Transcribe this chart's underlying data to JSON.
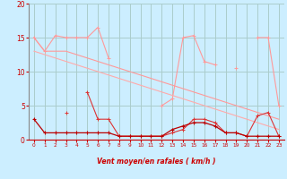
{
  "bg_color": "#cceeff",
  "grid_color": "#aacccc",
  "xlabel": "Vent moyen/en rafales ( km/h )",
  "xlabel_color": "#cc0000",
  "tick_color": "#cc0000",
  "xlim": [
    -0.5,
    23.5
  ],
  "ylim": [
    0,
    20
  ],
  "yticks": [
    0,
    5,
    10,
    15,
    20
  ],
  "xticks": [
    0,
    1,
    2,
    3,
    4,
    5,
    6,
    7,
    8,
    9,
    10,
    11,
    12,
    13,
    14,
    15,
    16,
    17,
    18,
    19,
    20,
    21,
    22,
    23
  ],
  "line_color_dark": "#bb0000",
  "line_color_mid": "#dd3333",
  "line_color_light1": "#ff9999",
  "line_color_light2": "#ffaaaa",
  "series": {
    "s1_light_peaks": [
      15.0,
      13.0,
      15.3,
      15.0,
      15.0,
      15.0,
      16.5,
      12.0,
      null,
      null,
      null,
      null,
      5.0,
      6.0,
      15.0,
      15.3,
      11.5,
      11.0,
      null,
      10.5,
      null,
      15.0,
      15.0,
      5.0
    ],
    "s2_light_trend": [
      15.0,
      13.0,
      13.0,
      13.0,
      12.5,
      12.0,
      11.5,
      11.0,
      10.5,
      10.0,
      9.5,
      9.0,
      8.5,
      8.0,
      7.5,
      7.0,
      6.5,
      6.0,
      5.5,
      5.0,
      4.5,
      4.0,
      3.5,
      3.0
    ],
    "s3_mid_line": [
      13.0,
      12.5,
      12.0,
      11.5,
      11.0,
      10.5,
      10.0,
      9.5,
      9.0,
      8.5,
      8.0,
      7.5,
      7.0,
      6.5,
      6.0,
      5.5,
      5.0,
      4.5,
      4.0,
      3.5,
      3.0,
      2.5,
      2.0,
      1.5
    ],
    "s4_mid_spikes": [
      null,
      null,
      null,
      4.0,
      null,
      7.0,
      3.0,
      3.0,
      0.5,
      0.5,
      0.5,
      0.5,
      0.5,
      1.0,
      1.5,
      3.0,
      3.0,
      2.5,
      1.0,
      1.0,
      0.5,
      3.5,
      4.0,
      0.5
    ],
    "s5_dark_low": [
      3.0,
      1.0,
      1.0,
      1.0,
      1.0,
      1.0,
      1.0,
      1.0,
      0.5,
      0.5,
      0.5,
      0.5,
      0.5,
      1.5,
      2.0,
      2.5,
      2.5,
      2.0,
      1.0,
      1.0,
      0.5,
      0.5,
      0.5,
      0.5
    ]
  },
  "wind_dirs": [
    225,
    225,
    210,
    210,
    225,
    210,
    180,
    180,
    180,
    180,
    180,
    180,
    180,
    135,
    90,
    90,
    90,
    90,
    90,
    90,
    90,
    90,
    90,
    135
  ]
}
